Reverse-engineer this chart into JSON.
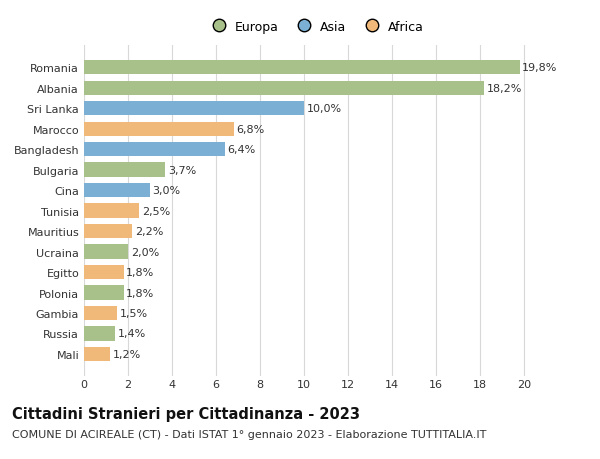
{
  "categories": [
    "Romania",
    "Albania",
    "Sri Lanka",
    "Marocco",
    "Bangladesh",
    "Bulgaria",
    "Cina",
    "Tunisia",
    "Mauritius",
    "Ucraina",
    "Egitto",
    "Polonia",
    "Gambia",
    "Russia",
    "Mali"
  ],
  "values": [
    19.8,
    18.2,
    10.0,
    6.8,
    6.4,
    3.7,
    3.0,
    2.5,
    2.2,
    2.0,
    1.8,
    1.8,
    1.5,
    1.4,
    1.2
  ],
  "labels": [
    "19,8%",
    "18,2%",
    "10,0%",
    "6,8%",
    "6,4%",
    "3,7%",
    "3,0%",
    "2,5%",
    "2,2%",
    "2,0%",
    "1,8%",
    "1,8%",
    "1,5%",
    "1,4%",
    "1,2%"
  ],
  "continents": [
    "Europa",
    "Europa",
    "Asia",
    "Africa",
    "Asia",
    "Europa",
    "Asia",
    "Africa",
    "Africa",
    "Europa",
    "Africa",
    "Europa",
    "Africa",
    "Europa",
    "Africa"
  ],
  "continent_colors": {
    "Europa": "#a8c08a",
    "Asia": "#7bafd4",
    "Africa": "#f0b97a"
  },
  "legend_order": [
    "Europa",
    "Asia",
    "Africa"
  ],
  "title": "Cittadini Stranieri per Cittadinanza - 2023",
  "subtitle": "COMUNE DI ACIREALE (CT) - Dati ISTAT 1° gennaio 2023 - Elaborazione TUTTITALIA.IT",
  "xlim": [
    0,
    21
  ],
  "xticks": [
    0,
    2,
    4,
    6,
    8,
    10,
    12,
    14,
    16,
    18,
    20
  ],
  "background_color": "#ffffff",
  "grid_color": "#d8d8d8",
  "bar_height": 0.7,
  "title_fontsize": 10.5,
  "subtitle_fontsize": 8,
  "label_fontsize": 8,
  "tick_fontsize": 8,
  "legend_fontsize": 9
}
